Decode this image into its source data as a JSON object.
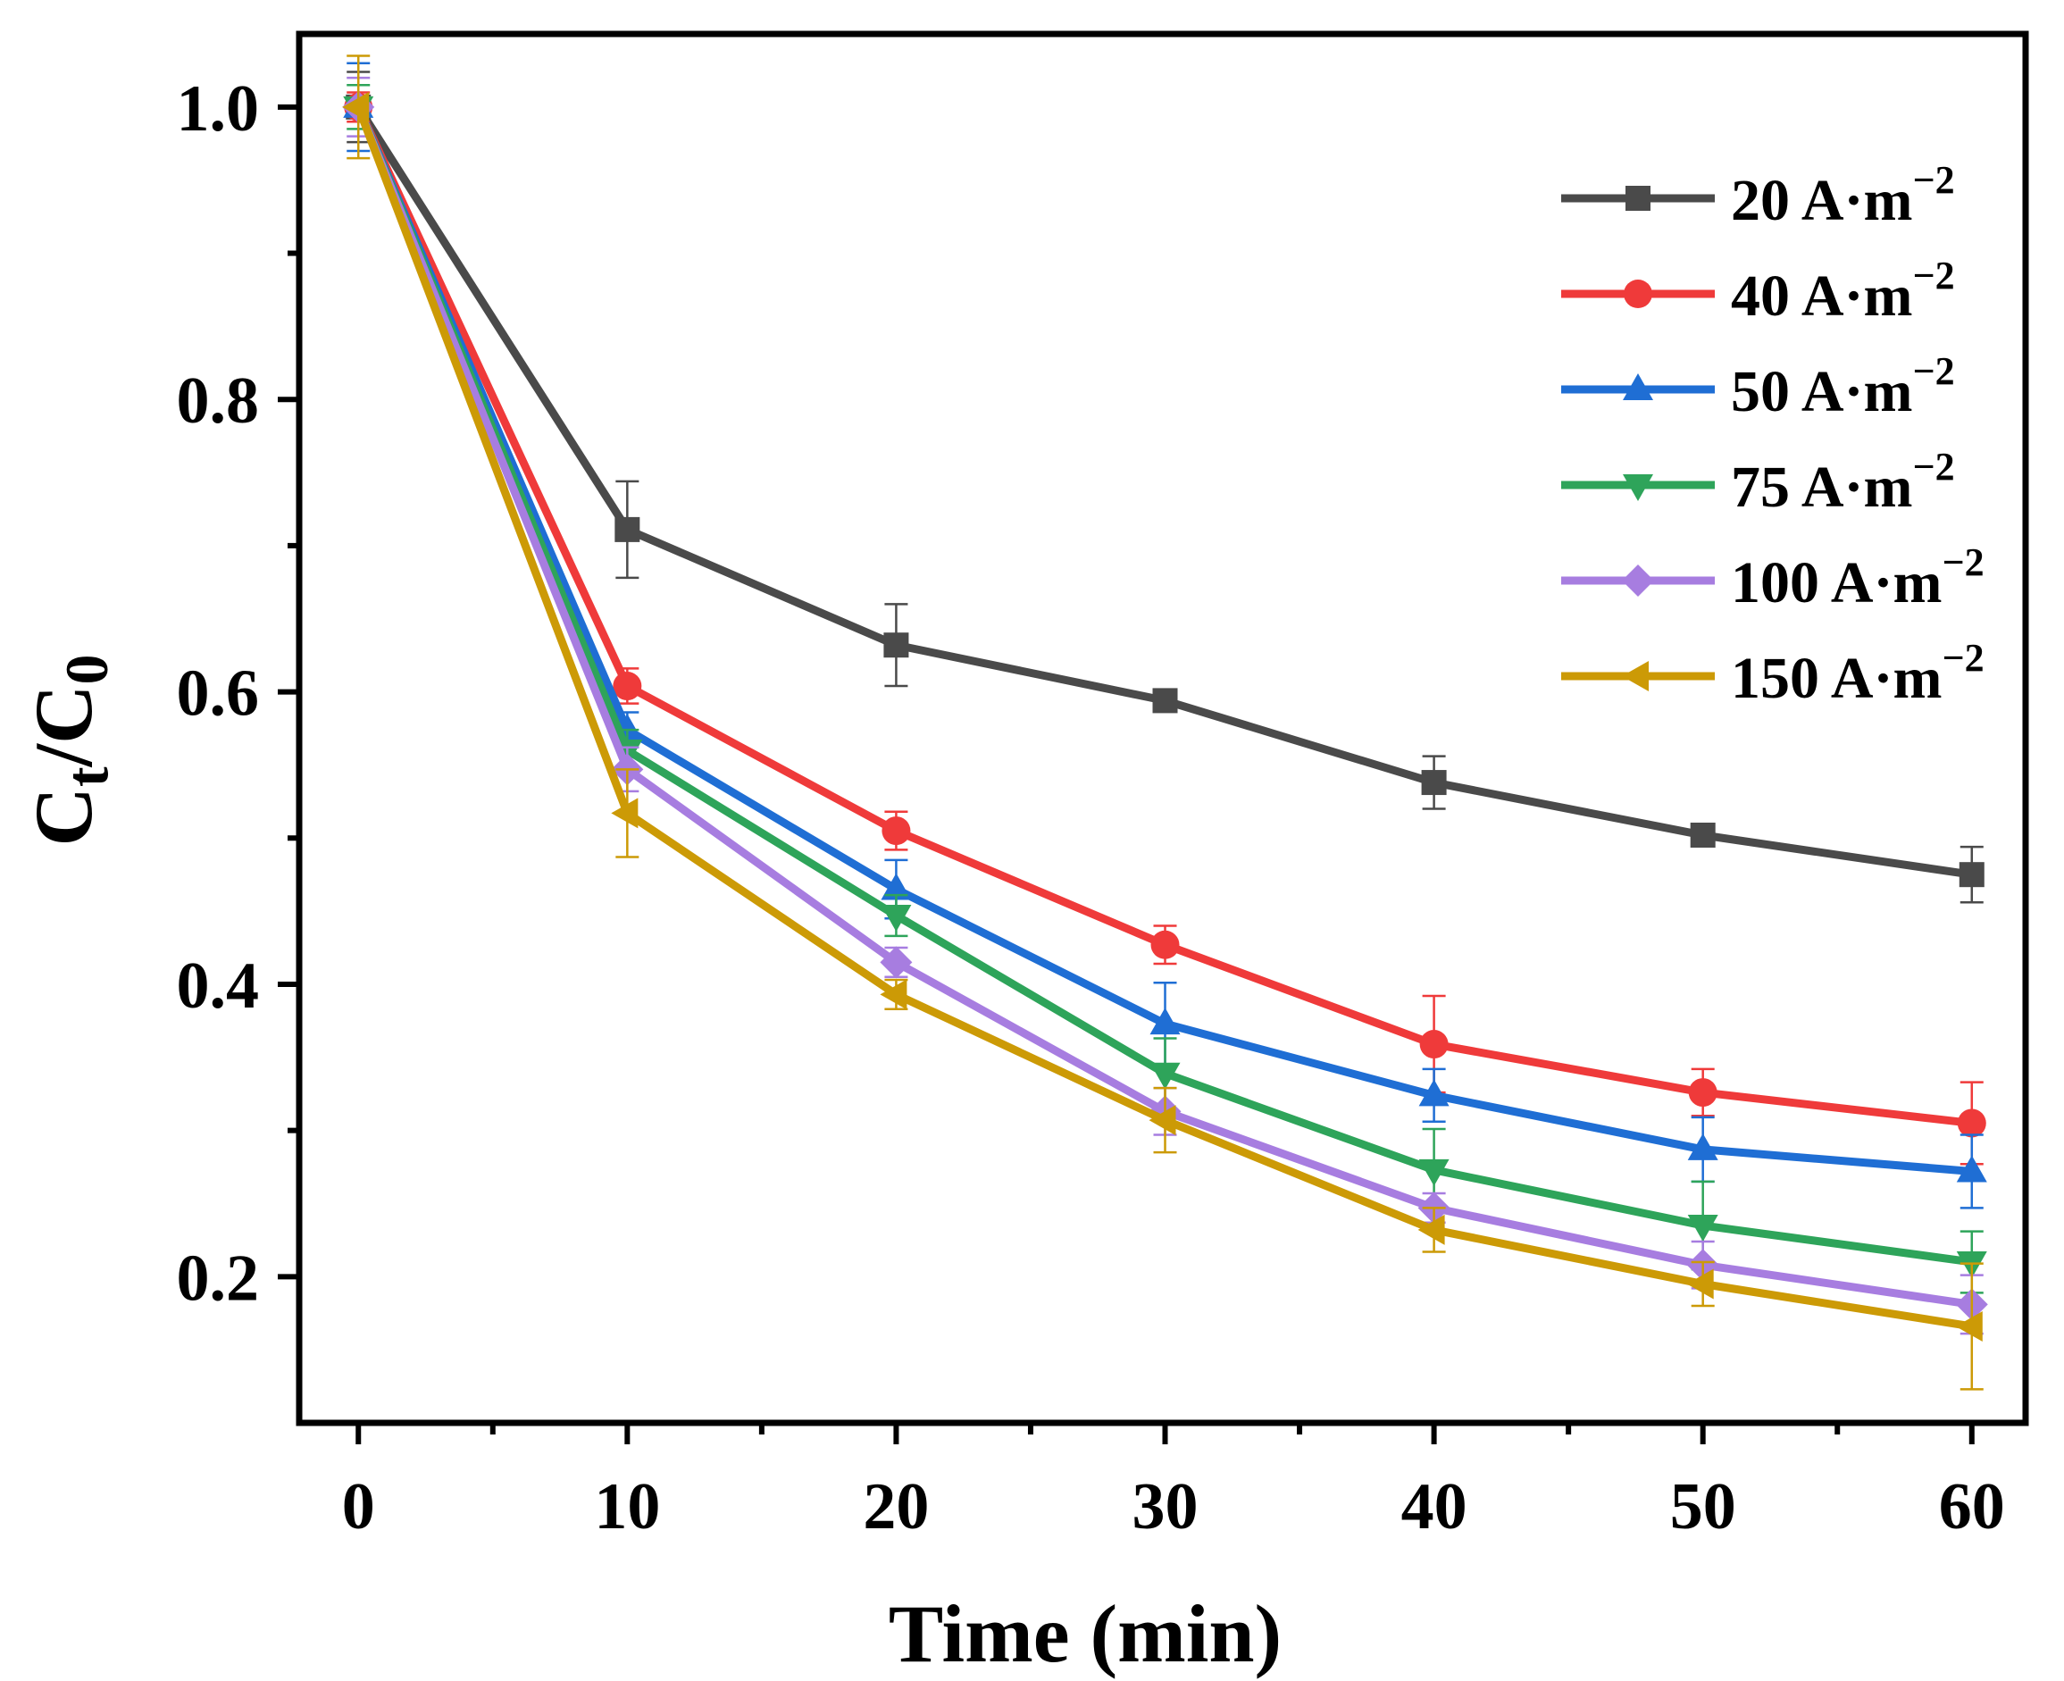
{
  "chart_data": {
    "type": "line",
    "xlabel": "Time  (min)",
    "ylabel": {
      "main": "C",
      "sub_t": "t",
      "slash": "/C",
      "sub_0": "0"
    },
    "xlim": [
      -2.2,
      62
    ],
    "ylim": [
      0.1,
      1.05
    ],
    "x_ticks": [
      0,
      10,
      20,
      30,
      40,
      50,
      60
    ],
    "x_tick_labels": [
      "0",
      "10",
      "20",
      "30",
      "40",
      "50",
      "60"
    ],
    "x_minor_ticks": [
      5,
      15,
      25,
      35,
      45,
      55
    ],
    "y_ticks": [
      0.2,
      0.4,
      0.6,
      0.8,
      1.0
    ],
    "y_tick_labels": [
      "0.2",
      "0.4",
      "0.6",
      "0.8",
      "1.0"
    ],
    "y_minor_ticks": [
      0.3,
      0.5,
      0.7,
      0.9
    ],
    "grid": false,
    "legend_position": "top-right",
    "x": [
      0,
      10,
      20,
      30,
      40,
      50,
      60
    ],
    "series": [
      {
        "name": "20 A·m",
        "sup": "−2",
        "color": "#4a4a4a",
        "marker": "square",
        "values": [
          1.0,
          0.711,
          0.632,
          0.594,
          0.538,
          0.502,
          0.475
        ],
        "errors": [
          0.024,
          0.033,
          0.028,
          0.006,
          0.018,
          0.006,
          0.019
        ]
      },
      {
        "name": "40 A·m",
        "sup": "−2",
        "color": "#ef3a3a",
        "marker": "circle",
        "values": [
          1.0,
          0.604,
          0.505,
          0.427,
          0.359,
          0.326,
          0.305
        ],
        "errors": [
          0.01,
          0.012,
          0.013,
          0.013,
          0.033,
          0.016,
          0.028
        ]
      },
      {
        "name": "50 A·m",
        "sup": "−2",
        "color": "#1f6ed4",
        "marker": "triangle-up",
        "values": [
          1.0,
          0.574,
          0.465,
          0.373,
          0.324,
          0.287,
          0.272
        ],
        "errors": [
          0.03,
          0.012,
          0.02,
          0.028,
          0.018,
          0.022,
          0.025
        ]
      },
      {
        "name": "75 A·m",
        "sup": "−2",
        "color": "#2ea45a",
        "marker": "triangle-down",
        "values": [
          1.0,
          0.56,
          0.447,
          0.339,
          0.273,
          0.235,
          0.21
        ],
        "errors": [
          0.015,
          0.014,
          0.014,
          0.024,
          0.028,
          0.03,
          0.021
        ]
      },
      {
        "name": "100 A·m",
        "sup": "−2",
        "color": "#a77de0",
        "marker": "diamond",
        "values": [
          1.0,
          0.547,
          0.415,
          0.313,
          0.247,
          0.208,
          0.181
        ],
        "errors": [
          0.02,
          0.015,
          0.01,
          0.016,
          0.01,
          0.016,
          0.02
        ]
      },
      {
        "name": "150 A·m",
        "sup": "−2",
        "color": "#cc9a06",
        "marker": "triangle-left",
        "values": [
          1.0,
          0.517,
          0.393,
          0.307,
          0.232,
          0.195,
          0.166
        ],
        "errors": [
          0.035,
          0.03,
          0.01,
          0.022,
          0.015,
          0.015,
          0.043
        ]
      }
    ]
  }
}
